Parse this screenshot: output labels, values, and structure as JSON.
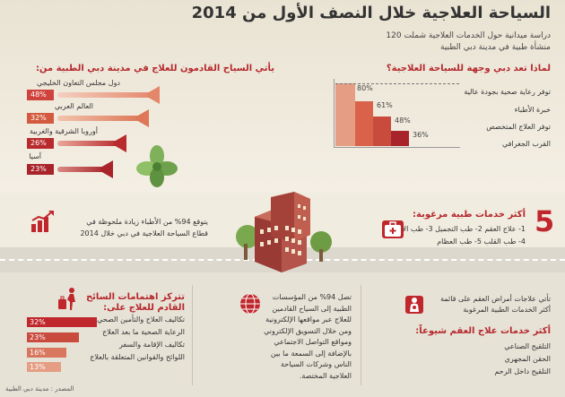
{
  "header": {
    "title": "السياحة العلاجية خلال النصف الأول من 2014",
    "subtitle_1": "دراسة ميدانية حول الخدمات العلاجية شملت 120",
    "subtitle_2": "منشأة طبية في مدينة دبي الطبية"
  },
  "origins": {
    "title": "يأتي السياح القادمون للعلاج في مدينة دبي الطبية من:",
    "items": [
      {
        "label": "دول مجلس التعاون الخليجي",
        "value": "48%",
        "pct": 48
      },
      {
        "label": "العالم العربي",
        "value": "32%",
        "pct": 32
      },
      {
        "label": "أوروبا الشرقية والغربية",
        "value": "26%",
        "pct": 26
      },
      {
        "label": "آسيا",
        "value": "23%",
        "pct": 23
      }
    ]
  },
  "why": {
    "title": "لماذا تعد دبي وجهة للسياحة العلاجية؟",
    "items": [
      {
        "label": "توفر رعاية صحية بجودة عالية",
        "value": "80%",
        "pct": 80
      },
      {
        "label": "خبرة الأطباء",
        "value": "61%",
        "pct": 61
      },
      {
        "label": "توفر العلاج المتخصص",
        "value": "48%",
        "pct": 48
      },
      {
        "label": "القرب الجغرافي",
        "value": "36%",
        "pct": 36
      }
    ]
  },
  "doctors": {
    "line_1": "يتوقع 94% من الأطباء زيادة ملحوظة في",
    "line_2": "قطاع السياحة العلاجية في دبي خلال 2014"
  },
  "top5": {
    "number": "5",
    "title": "أكثر خدمات طبية مرغوبة:",
    "row_1": "1- علاج العقم    2- طب التجميل    3- طب الأسنان",
    "row_2": "4- طب القلب    5- طب العظام"
  },
  "concerns": {
    "title_1": "تتركز اهتمامات السائح",
    "title_2": "القادم للعلاج على:",
    "items": [
      {
        "label": "تكاليف العلاج والتأمين الصحي",
        "value": "32%",
        "pct": 32
      },
      {
        "label": "الرعاية الصحية ما بعد العلاج",
        "value": "23%",
        "pct": 23
      },
      {
        "label": "تكاليف الإقامة والسفر",
        "value": "16%",
        "pct": 16
      },
      {
        "label": "اللوائح والقوانين المتعلقة بالعلاج",
        "value": "13%",
        "pct": 13
      }
    ]
  },
  "marketing": {
    "lines": [
      "تصل 94% من المؤسسات",
      "الطبية إلى السياح القادمين",
      "للعلاج عبر مواقعها الإلكترونية",
      "ومن خلال التسويق الإلكتروني",
      "ومواقع التواصل الاجتماعي",
      "بالإضافة إلى السمعة ما بين",
      "الناس وشركات السياحة",
      "العلاجية المختصة."
    ]
  },
  "infertility": {
    "line_1": "تأتي علاجات أمراض العقم على قائمة",
    "line_2": "أكثر الخدمات الطبية المرغوبة",
    "title": "أكثر خدمات علاج العقم شيوعاً:",
    "items": [
      "التلقيح الصناعي",
      "الحقن المجهري",
      "التلقيح داخل الرحم"
    ]
  },
  "source": "المصدر : مدينة دبي الطبية",
  "colors": {
    "accent": "#c0272d",
    "bar_1": "#c0272d",
    "bar_2": "#d4553a",
    "bar_3": "#e28a6c",
    "bar_4": "#eeb9a3"
  }
}
